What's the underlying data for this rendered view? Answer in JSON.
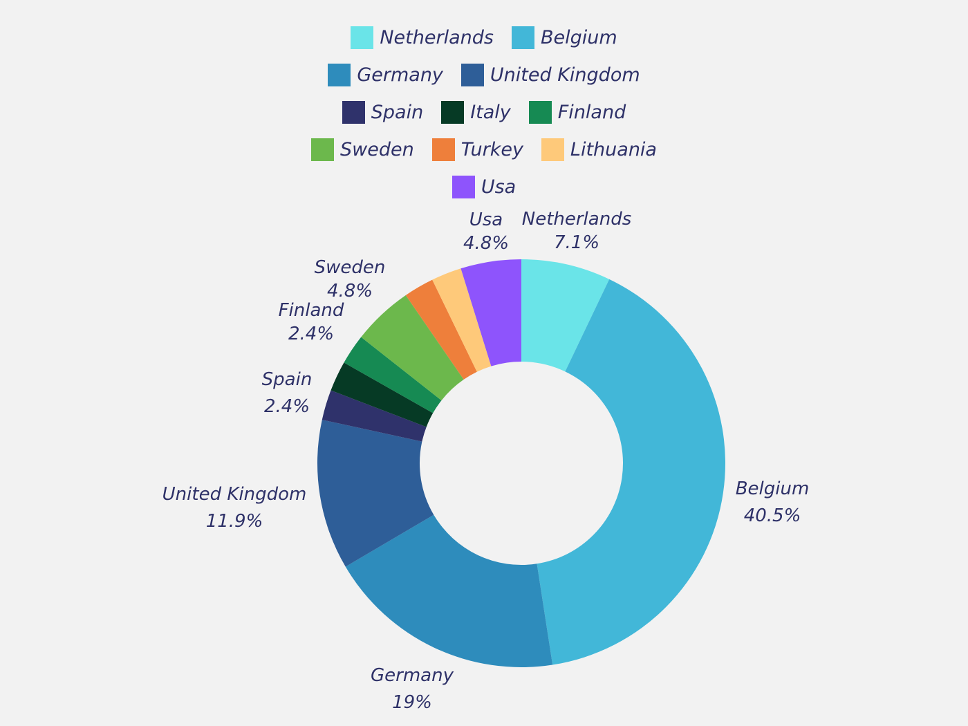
{
  "chart_data": {
    "type": "pie",
    "donut": true,
    "title": "",
    "legend_position": "top",
    "categories": [
      "Netherlands",
      "Belgium",
      "Germany",
      "United Kingdom",
      "Spain",
      "Italy",
      "Finland",
      "Sweden",
      "Turkey",
      "Lithuania",
      "Usa"
    ],
    "values": [
      7.1,
      40.5,
      19,
      11.9,
      2.4,
      2.4,
      2.4,
      4.8,
      2.4,
      2.4,
      4.8
    ],
    "value_labels": [
      "7.1%",
      "40.5%",
      "19%",
      "11.9%",
      "2.4%",
      "",
      "2.4%",
      "4.8%",
      "",
      "",
      "4.8%"
    ],
    "colors": [
      "#6ae4e8",
      "#42b7d8",
      "#2e8cbc",
      "#2e5e98",
      "#2f326b",
      "#063a25",
      "#168a53",
      "#6cb84c",
      "#ee7f3b",
      "#fec97a",
      "#8e54fc"
    ],
    "legend_rows": [
      [
        0,
        1
      ],
      [
        2,
        3
      ],
      [
        4,
        5,
        6
      ],
      [
        7,
        8,
        9
      ],
      [
        10
      ]
    ],
    "show_label": [
      true,
      true,
      true,
      true,
      true,
      false,
      true,
      true,
      false,
      false,
      true
    ]
  }
}
